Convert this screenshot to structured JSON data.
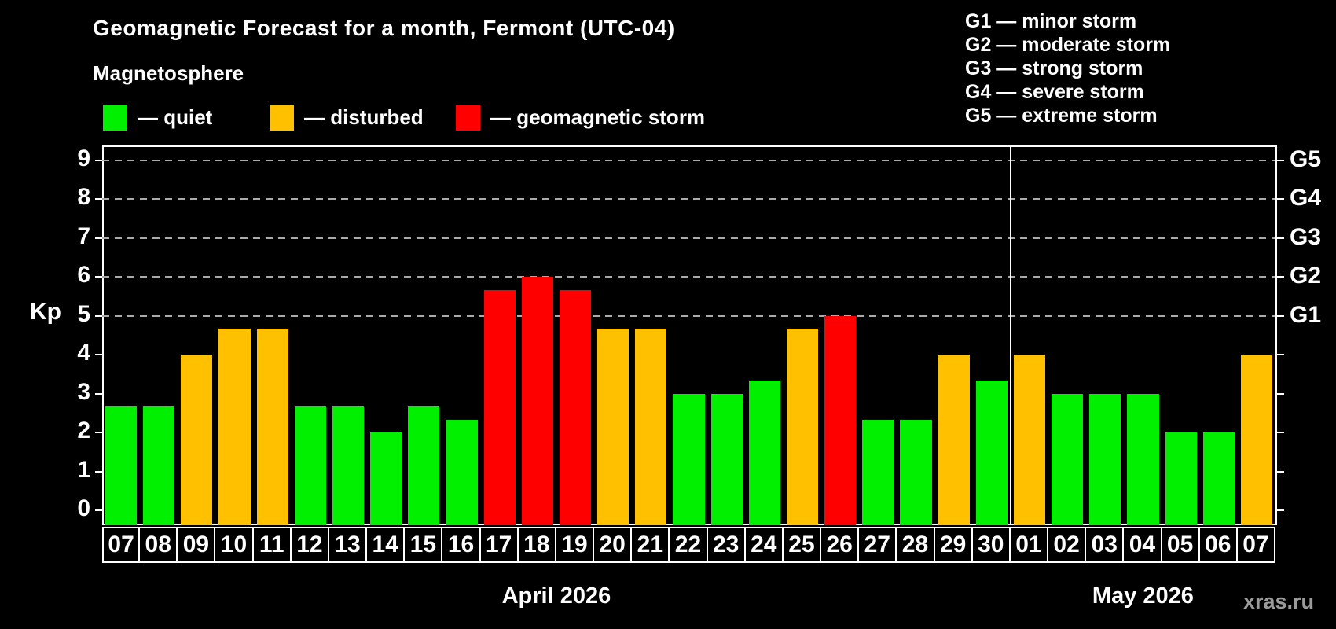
{
  "title": "Geomagnetic Forecast for a month, Fermont (UTC-04)",
  "subtitle": "Magnetosphere",
  "axis": {
    "ylabel": "Kp",
    "yticks": [
      0,
      1,
      2,
      3,
      4,
      5,
      6,
      7,
      8,
      9
    ]
  },
  "legend": {
    "items": [
      {
        "key": "quiet",
        "label": "— quiet",
        "x": 131
      },
      {
        "key": "disturbed",
        "label": "— disturbed",
        "x": 343
      },
      {
        "key": "storm",
        "label": "— geomagnetic storm",
        "x": 580
      }
    ]
  },
  "storm_scale": [
    {
      "code": "G1",
      "text": "G1 — minor storm",
      "kp": 5
    },
    {
      "code": "G2",
      "text": "G2 — moderate storm",
      "kp": 6
    },
    {
      "code": "G3",
      "text": "G3 — strong storm",
      "kp": 7
    },
    {
      "code": "G4",
      "text": "G4 — severe storm",
      "kp": 8
    },
    {
      "code": "G5",
      "text": "G5 — extreme storm",
      "kp": 9
    }
  ],
  "colors": {
    "quiet": "#00F000",
    "disturbed": "#FFC000",
    "storm": "#FF0000",
    "grid": "#ABABAB",
    "axis": "#FFFFFF",
    "background": "#000000",
    "watermark": "#9B9B9B"
  },
  "watermark": "xras.ru",
  "chart_data": {
    "type": "bar",
    "title": "Geomagnetic Forecast for a month, Fermont (UTC-04)",
    "ylabel": "Kp",
    "ylim": [
      0,
      9
    ],
    "grid": "dashed horizontal lines at Kp 5,6,7,8,9 (G1–G5)",
    "legend_position": "top",
    "months": [
      {
        "label": "April 2026",
        "start_index": 0,
        "count": 24
      },
      {
        "label": "May 2026",
        "start_index": 24,
        "count": 7
      }
    ],
    "categories": [
      "07",
      "08",
      "09",
      "10",
      "11",
      "12",
      "13",
      "14",
      "15",
      "16",
      "17",
      "18",
      "19",
      "20",
      "21",
      "22",
      "23",
      "24",
      "25",
      "26",
      "27",
      "28",
      "29",
      "30",
      "01",
      "02",
      "03",
      "04",
      "05",
      "06",
      "07"
    ],
    "values": [
      2.67,
      2.67,
      4.0,
      4.67,
      4.67,
      2.67,
      2.67,
      2.0,
      2.67,
      2.33,
      5.67,
      6.0,
      5.67,
      4.67,
      4.67,
      3.0,
      3.0,
      3.33,
      4.67,
      5.0,
      2.33,
      2.33,
      4.0,
      3.33,
      4.0,
      3.0,
      3.0,
      3.0,
      2.0,
      2.0,
      4.0
    ],
    "levels": [
      "quiet",
      "quiet",
      "disturbed",
      "disturbed",
      "disturbed",
      "quiet",
      "quiet",
      "quiet",
      "quiet",
      "quiet",
      "storm",
      "storm",
      "storm",
      "disturbed",
      "disturbed",
      "quiet",
      "quiet",
      "quiet",
      "disturbed",
      "storm",
      "quiet",
      "quiet",
      "disturbed",
      "quiet",
      "disturbed",
      "quiet",
      "quiet",
      "quiet",
      "quiet",
      "quiet",
      "disturbed"
    ]
  }
}
